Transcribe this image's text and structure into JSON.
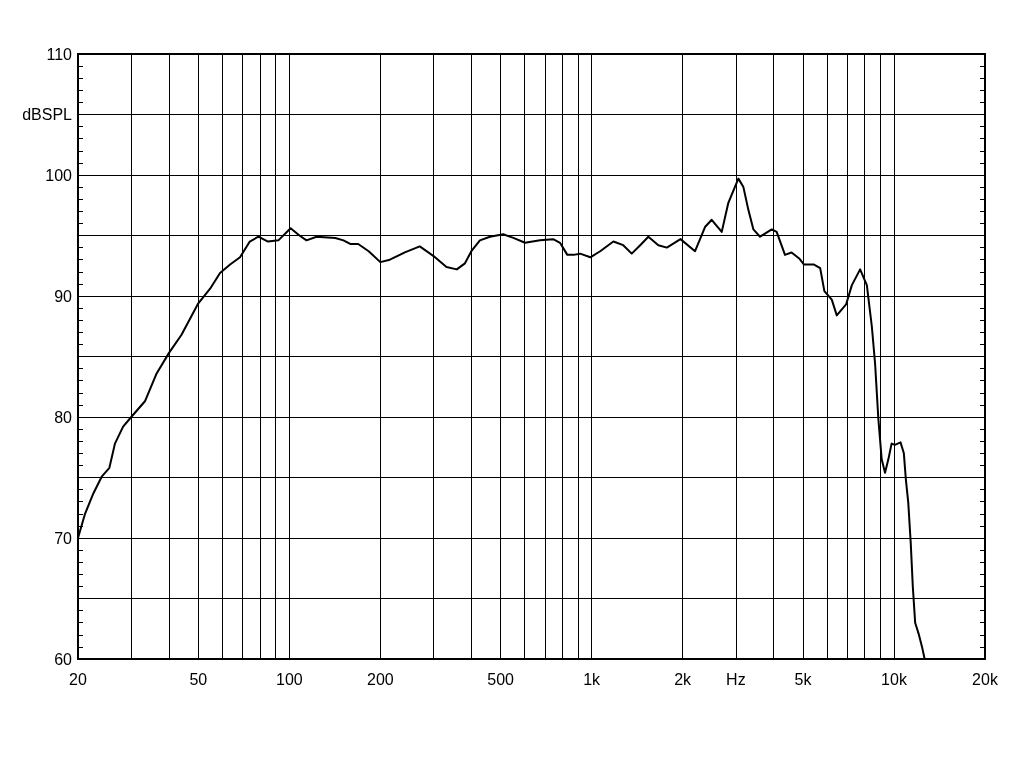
{
  "chart_data": {
    "type": "line",
    "x": [
      20,
      21.1,
      22.5,
      24,
      25.4,
      26.5,
      28.2,
      30,
      33.3,
      36.4,
      40,
      44,
      50,
      54.7,
      59,
      63.7,
      68.7,
      74,
      79,
      85,
      92,
      101,
      108,
      114,
      123,
      142,
      151,
      159,
      169,
      183,
      200,
      215,
      241,
      270,
      300,
      331,
      358,
      381,
      400,
      427,
      461,
      510,
      551,
      602,
      675,
      746,
      786,
      831,
      871,
      916,
      990,
      1067,
      1180,
      1272,
      1357,
      1447,
      1540,
      1662,
      1773,
      1967,
      2198,
      2371,
      2495,
      2693,
      2832,
      3057,
      3176,
      3300,
      3428,
      3605,
      3941,
      4092,
      4360,
      4583,
      4858,
      5040,
      5440,
      5700,
      5885,
      6226,
      6468,
      6943,
      7256,
      7727,
      8132,
      8446,
      8660,
      8880,
      9106,
      9340,
      9580,
      9820,
      10070,
      10510,
      10780,
      10950,
      11150,
      11360,
      11540,
      11750,
      12060,
      12380,
      12630
    ],
    "values": [
      70.0,
      72.0,
      73.7,
      75.1,
      75.8,
      77.8,
      79.2,
      80.0,
      81.3,
      83.6,
      85.3,
      86.8,
      89.4,
      90.6,
      91.9,
      92.6,
      93.2,
      94.5,
      94.9,
      94.5,
      94.6,
      95.6,
      95.0,
      94.6,
      94.9,
      94.8,
      94.6,
      94.3,
      94.3,
      93.7,
      92.8,
      93.0,
      93.6,
      94.1,
      93.3,
      92.4,
      92.2,
      92.7,
      93.7,
      94.6,
      94.9,
      95.1,
      94.8,
      94.4,
      94.6,
      94.7,
      94.4,
      93.4,
      93.4,
      93.5,
      93.2,
      93.7,
      94.5,
      94.2,
      93.5,
      94.2,
      94.9,
      94.2,
      94.0,
      94.7,
      93.7,
      95.7,
      96.3,
      95.3,
      97.7,
      99.7,
      99.0,
      97.1,
      95.5,
      94.9,
      95.5,
      95.3,
      93.4,
      93.6,
      93.1,
      92.6,
      92.6,
      92.3,
      90.4,
      89.7,
      88.4,
      89.3,
      90.9,
      92.2,
      90.9,
      87.5,
      84.4,
      79.8,
      76.5,
      75.4,
      76.5,
      77.8,
      77.7,
      77.9,
      77.0,
      74.8,
      72.9,
      69.6,
      66.0,
      63.0,
      62.1,
      61.0,
      60.0
    ],
    "color": "#000000",
    "xlim": [
      20,
      20000
    ],
    "ylim": [
      60,
      110
    ],
    "xticks": [
      20,
      {
        "value": 30,
        "label": null
      },
      {
        "value": 40,
        "label": null
      },
      50,
      {
        "value": 60,
        "label": null
      },
      {
        "value": 70,
        "label": null
      },
      {
        "value": 80,
        "label": null
      },
      {
        "value": 90,
        "label": null
      },
      100,
      200,
      {
        "value": 300,
        "label": null
      },
      {
        "value": 400,
        "label": null
      },
      500,
      {
        "value": 600,
        "label": null
      },
      {
        "value": 700,
        "label": null
      },
      {
        "value": 800,
        "label": null
      },
      {
        "value": 900,
        "label": null
      },
      {
        "value": 1000,
        "label": "1k"
      },
      {
        "value": 2000,
        "label": "2k"
      },
      {
        "value": 3000,
        "label": "Hz"
      },
      {
        "value": 4000,
        "label": null
      },
      {
        "value": 5000,
        "label": "5k"
      },
      {
        "value": 6000,
        "label": null
      },
      {
        "value": 7000,
        "label": null
      },
      {
        "value": 8000,
        "label": null
      },
      {
        "value": 9000,
        "label": null
      },
      {
        "value": 10000,
        "label": "10k"
      },
      {
        "value": 20000,
        "label": "20k"
      }
    ],
    "yticks": [
      60,
      {
        "value": 65,
        "label": null
      },
      70,
      {
        "value": 75,
        "label": null
      },
      80,
      {
        "value": 85,
        "label": null
      },
      90,
      {
        "value": 95,
        "label": null
      },
      100,
      {
        "value": 105,
        "label": "dBSPL"
      },
      110
    ],
    "log": "x",
    "grid": true,
    "marker": "none",
    "line_style": "solid"
  }
}
